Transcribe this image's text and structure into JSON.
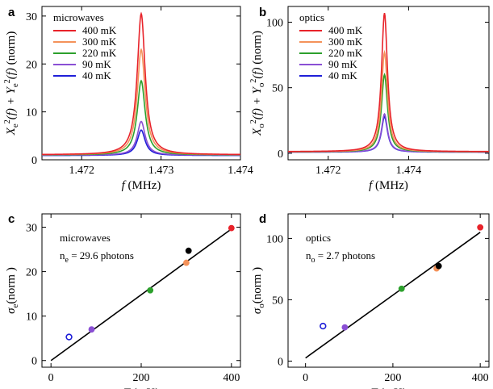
{
  "chart_data": [
    {
      "panel": "a",
      "type": "line",
      "xlabel_main": "f",
      "xlabel_unit": "(MHz)",
      "ylabel": "Xe²(f) + Ye²(f) (norm)",
      "ylabel_parts": {
        "X": "X",
        "e": "e",
        "plus": "+",
        "Y": "Y",
        "f": "(f)",
        "norm": "(norm)"
      },
      "xlim": [
        1.4715,
        1.474
      ],
      "ylim": [
        0,
        32
      ],
      "xticks": [
        1.472,
        1.473,
        1.474
      ],
      "xtick_labels": [
        "1.472",
        "1.473",
        "1.474"
      ],
      "yticks": [
        0,
        10,
        20,
        30
      ],
      "ytick_labels": [
        "0",
        "10",
        "20",
        "30"
      ],
      "legend_title": "microwaves",
      "baseline": 1.0,
      "center": 1.47275,
      "width": 6e-05,
      "series": [
        {
          "name": "400 mK",
          "color": "#e8232a",
          "peak": 30.5,
          "baseline": 1.05
        },
        {
          "name": "300 mK",
          "color": "#f4925a",
          "peak": 23.0,
          "baseline": 1.05
        },
        {
          "name": "220 mK",
          "color": "#2ca02c",
          "peak": 16.5,
          "baseline": 1.0
        },
        {
          "name": "90 mK",
          "color": "#8a4fd4",
          "peak": 8.0,
          "baseline": 0.95
        },
        {
          "name": "40 mK",
          "color": "#1f1fd8",
          "peak": 6.2,
          "baseline": 0.9
        }
      ]
    },
    {
      "panel": "b",
      "type": "line",
      "xlabel_main": "f",
      "xlabel_unit": "(MHz)",
      "ylabel": "Xo²(f) + Yo²(f) (norm)",
      "ylabel_parts": {
        "X": "X",
        "o": "o",
        "plus": "+",
        "Y": "Y",
        "f": "(f)",
        "norm": "(norm)"
      },
      "xlim": [
        1.471,
        1.476
      ],
      "ylim": [
        -5,
        112
      ],
      "xticks": [
        1.472,
        1.474
      ],
      "xtick_labels": [
        "1.472",
        "1.474"
      ],
      "yticks": [
        0,
        50,
        100
      ],
      "ytick_labels": [
        "0",
        "50",
        "100"
      ],
      "legend_title": "optics",
      "baseline": 1.0,
      "center": 1.4734,
      "width": 9e-05,
      "series": [
        {
          "name": "400 mK",
          "color": "#e8232a",
          "peak": 107,
          "baseline": 1.2
        },
        {
          "name": "300 mK",
          "color": "#f4925a",
          "peak": 77,
          "baseline": 1.1
        },
        {
          "name": "220 mK",
          "color": "#2ca02c",
          "peak": 60,
          "baseline": 1.0
        },
        {
          "name": "90 mK",
          "color": "#8a4fd4",
          "peak": 30,
          "baseline": 0.9
        },
        {
          "name": "40 mK",
          "color": "#1f1fd8",
          "peak": 28,
          "baseline": 0.8
        }
      ]
    },
    {
      "panel": "c",
      "type": "scatter",
      "xlabel_main": "T",
      "xlabel_unit": "(mK)",
      "ylabel_main": "σ",
      "ylabel_sub": "e",
      "ylabel_unit": "(norm )",
      "xlim": [
        -20,
        420
      ],
      "ylim": [
        -1.5,
        33
      ],
      "xticks": [
        0,
        200,
        400
      ],
      "xtick_labels": [
        "0",
        "200",
        "400"
      ],
      "yticks": [
        0,
        10,
        20,
        30
      ],
      "ytick_labels": [
        "0",
        "10",
        "20",
        "30"
      ],
      "annotation_line1": "microwaves",
      "annotation_n": "n",
      "annotation_sub": "e",
      "annotation_value": "= 29.6 photons",
      "fit": {
        "x": [
          0,
          400
        ],
        "y": [
          0,
          29.6
        ]
      },
      "points": [
        {
          "x": 40,
          "y": 5.3,
          "color": "#1f1fd8",
          "filled": false
        },
        {
          "x": 90,
          "y": 7.0,
          "color": "#8a4fd4",
          "filled": true
        },
        {
          "x": 220,
          "y": 15.8,
          "color": "#2ca02c",
          "filled": true
        },
        {
          "x": 300,
          "y": 22.0,
          "color": "#f4925a",
          "filled": true
        },
        {
          "x": 305,
          "y": 24.7,
          "color": "#000000",
          "filled": true
        },
        {
          "x": 400,
          "y": 29.8,
          "color": "#e8232a",
          "filled": true
        }
      ]
    },
    {
      "panel": "d",
      "type": "scatter",
      "xlabel_main": "T",
      "xlabel_unit": "(mK)",
      "ylabel_main": "σ",
      "ylabel_sub": "o",
      "ylabel_unit": "(norm )",
      "xlim": [
        -40,
        420
      ],
      "ylim": [
        -5,
        120
      ],
      "xticks": [
        0,
        200,
        400
      ],
      "xtick_labels": [
        "0",
        "200",
        "400"
      ],
      "yticks": [
        0,
        50,
        100
      ],
      "ytick_labels": [
        "0",
        "50",
        "100"
      ],
      "annotation_line1": "optics",
      "annotation_n": "n",
      "annotation_sub": "o",
      "annotation_value": "= 2.7 photons",
      "fit": {
        "x": [
          0,
          400
        ],
        "y": [
          2.5,
          105
        ]
      },
      "points": [
        {
          "x": 40,
          "y": 28.5,
          "color": "#1f1fd8",
          "filled": false
        },
        {
          "x": 90,
          "y": 27.5,
          "color": "#8a4fd4",
          "filled": true
        },
        {
          "x": 220,
          "y": 59.0,
          "color": "#2ca02c",
          "filled": true
        },
        {
          "x": 300,
          "y": 75.5,
          "color": "#f4925a",
          "filled": true
        },
        {
          "x": 305,
          "y": 77.5,
          "color": "#000000",
          "filled": true
        },
        {
          "x": 400,
          "y": 109.0,
          "color": "#e8232a",
          "filled": true
        }
      ]
    }
  ]
}
